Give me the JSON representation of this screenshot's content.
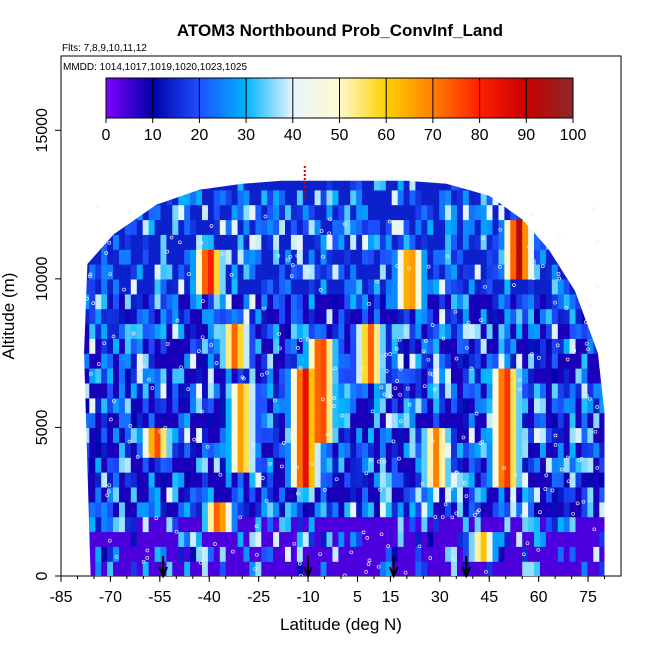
{
  "chart_data": {
    "type": "heatmap",
    "title": "ATOM3 Northbound Prob_ConvInf_Land",
    "subtitle_flights": "Flts: 7,8,9,10,11,12",
    "subtitle_dates": "MMDD: 1014,1017,1019,1020,1023,1025",
    "xlabel": "Latitude (deg N)",
    "ylabel": "Altitude (m)",
    "xlim": [
      -85,
      85
    ],
    "ylim": [
      0,
      17500
    ],
    "x_ticks": [
      -85,
      -70,
      -55,
      -40,
      -25,
      -10,
      5,
      15,
      30,
      45,
      60,
      75
    ],
    "x_tick_labels": [
      "-85",
      "-70",
      "-55",
      "-40",
      "-25",
      "-10",
      "5",
      "15",
      "30",
      "45",
      "60",
      "75"
    ],
    "y_ticks": [
      0,
      5000,
      10000,
      15000
    ],
    "y_tick_labels": [
      "0",
      "5000",
      "10000",
      "15000"
    ],
    "colorbar": {
      "range": [
        0,
        100
      ],
      "ticks": [
        0,
        10,
        20,
        30,
        40,
        50,
        60,
        70,
        80,
        90,
        100
      ],
      "tick_labels": [
        "0",
        "10",
        "20",
        "30",
        "40",
        "50",
        "60",
        "70",
        "80",
        "90",
        "100"
      ],
      "colors": [
        "#7f00ff",
        "#0000aa",
        "#1e50ff",
        "#00b4ff",
        "#e6f5ff",
        "#fffad0",
        "#ffd000",
        "#ff8000",
        "#ff1e00",
        "#c80000",
        "#8c2828"
      ]
    },
    "arrows_latitude": [
      -54,
      -10,
      16,
      38
    ],
    "coverage_envelope": [
      [
        -77,
        10500
      ],
      [
        -69,
        11500
      ],
      [
        -56,
        12500
      ],
      [
        -43,
        13000
      ],
      [
        -30,
        13200
      ],
      [
        -18,
        13300
      ],
      [
        -5,
        13300
      ],
      [
        8,
        13300
      ],
      [
        20,
        13300
      ],
      [
        32,
        13200
      ],
      [
        45,
        12800
      ],
      [
        55,
        12000
      ],
      [
        63,
        11000
      ],
      [
        71,
        9600
      ],
      [
        78,
        7500
      ],
      [
        80,
        5500
      ],
      [
        80,
        0
      ]
    ],
    "hotspots": [
      {
        "lat": -12,
        "alt_min": 3000,
        "alt_max": 6800,
        "value": 90
      },
      {
        "lat": -7,
        "alt_min": 4500,
        "alt_max": 7500,
        "value": 85
      },
      {
        "lat": -31,
        "alt_min": 3500,
        "alt_max": 6000,
        "value": 70
      },
      {
        "lat": 42,
        "alt_min": 400,
        "alt_max": 1400,
        "value": 65
      },
      {
        "lat": 49,
        "alt_min": 3000,
        "alt_max": 6500,
        "value": 85
      },
      {
        "lat": 53,
        "alt_min": 9800,
        "alt_max": 11800,
        "value": 95
      },
      {
        "lat": -41,
        "alt_min": 9500,
        "alt_max": 10700,
        "value": 88
      },
      {
        "lat": -57,
        "alt_min": 3800,
        "alt_max": 4900,
        "value": 80
      },
      {
        "lat": 20,
        "alt_min": 9000,
        "alt_max": 10500,
        "value": 75
      },
      {
        "lat": -33,
        "alt_min": 7000,
        "alt_max": 8000,
        "value": 75
      },
      {
        "lat": 28,
        "alt_min": 3000,
        "alt_max": 4500,
        "value": 70
      },
      {
        "lat": -38,
        "alt_min": 1200,
        "alt_max": 2000,
        "value": 80
      },
      {
        "lat": 8,
        "alt_min": 6500,
        "alt_max": 8000,
        "value": 75
      }
    ]
  }
}
